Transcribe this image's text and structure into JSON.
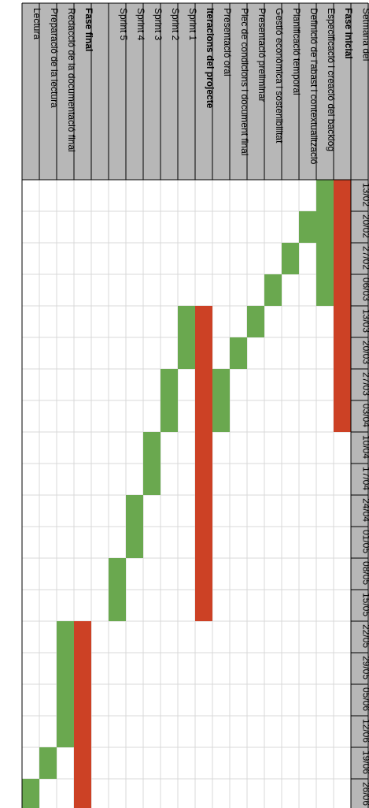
{
  "chart_data": {
    "type": "gantt",
    "orientation": "rotated-90-cw",
    "header_label": "Setmana del",
    "weeks": [
      "13/02",
      "20/02",
      "27/02",
      "06/03",
      "13/03",
      "20/03",
      "27/03",
      "03/04",
      "10/04",
      "17/04",
      "24/04",
      "01/05",
      "08/05",
      "15/05",
      "22/05",
      "29/05",
      "05/06",
      "12/06",
      "19/06",
      "26/06"
    ],
    "tasks": [
      {
        "label": "Fase inicial",
        "phase": true,
        "start_week": 0,
        "end_week": 7
      },
      {
        "label": "Especificació i creació del backlog",
        "phase": false,
        "start_week": 0,
        "end_week": 3
      },
      {
        "label": "Definició de l'abast i contextualització",
        "phase": false,
        "start_week": 1,
        "end_week": 1
      },
      {
        "label": "Planificació temporal",
        "phase": false,
        "start_week": 2,
        "end_week": 2
      },
      {
        "label": "Gestió econòmica i sostenibilitat",
        "phase": false,
        "start_week": 3,
        "end_week": 3
      },
      {
        "label": "Presentació preliminar",
        "phase": false,
        "start_week": 4,
        "end_week": 4
      },
      {
        "label": "Plec de condicions i document final",
        "phase": false,
        "start_week": 5,
        "end_week": 5
      },
      {
        "label": "Presentació oral",
        "phase": false,
        "start_week": 6,
        "end_week": 7
      },
      {
        "label": "Iteracions del projecte",
        "phase": true,
        "start_week": 4,
        "end_week": 13
      },
      {
        "label": "Sprint 1",
        "phase": false,
        "start_week": 4,
        "end_week": 5
      },
      {
        "label": "Sprint 2",
        "phase": false,
        "start_week": 6,
        "end_week": 7
      },
      {
        "label": "Sprint 3",
        "phase": false,
        "start_week": 8,
        "end_week": 9
      },
      {
        "label": "Sprint 4",
        "phase": false,
        "start_week": 10,
        "end_week": 11
      },
      {
        "label": "Sprint 5",
        "phase": false,
        "start_week": 12,
        "end_week": 13
      },
      {
        "label": "",
        "phase": false,
        "start_week": null,
        "end_week": null
      },
      {
        "label": "Fase final",
        "phase": true,
        "start_week": 14,
        "end_week": 19
      },
      {
        "label": "Redacció de la documentació final",
        "phase": false,
        "start_week": 14,
        "end_week": 17
      },
      {
        "label": "Preparació de la lectura",
        "phase": false,
        "start_week": 18,
        "end_week": 18
      },
      {
        "label": "Lectura",
        "phase": false,
        "start_week": 19,
        "end_week": 19
      }
    ],
    "colors": {
      "phase_bar": "#cc4125",
      "task_bar": "#6aa84f",
      "header_bg": "#b7b7b7",
      "grid": "#d9d9d9",
      "border": "#000000"
    },
    "grid": true
  }
}
